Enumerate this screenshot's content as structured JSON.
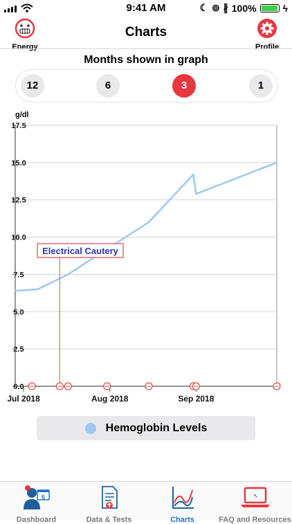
{
  "status_bar": {
    "time": "9:41 AM",
    "battery_text": "100%",
    "battery_level": 1.0
  },
  "nav": {
    "title": "Charts",
    "left_label": "Energy",
    "right_label": "Profile"
  },
  "months": {
    "title": "Months shown in graph",
    "options": [
      "12",
      "6",
      "3",
      "1"
    ],
    "selected": "3"
  },
  "legend": {
    "label": "Hemoglobin Levels",
    "color": "#9ec8f2"
  },
  "tabs": [
    {
      "label": "Dashboard",
      "badge": "6",
      "active": false
    },
    {
      "label": "Data & Tests",
      "active": false
    },
    {
      "label": "Charts",
      "active": true
    },
    {
      "label": "FAQ and Resources",
      "active": false
    }
  ],
  "colors": {
    "accent": "#e8373f",
    "series": "#9ec8f2",
    "active_tab": "#1f73c7",
    "marker": "#d9534f"
  },
  "chart_data": {
    "type": "line",
    "ylabel": "g/dl",
    "ylim": [
      0,
      17.5
    ],
    "yticks": [
      "0.0",
      "2.5",
      "5.0",
      "7.5",
      "10.0",
      "12.5",
      "15.0",
      "17.5"
    ],
    "xlim": [
      "2018-06-28",
      "2018-09-30"
    ],
    "xticks": [
      {
        "label": "Jul 2018",
        "date": "2018-07-01"
      },
      {
        "label": "Aug 2018",
        "date": "2018-08-01"
      },
      {
        "label": "Sep 2018",
        "date": "2018-09-01"
      }
    ],
    "grid": true,
    "series": [
      {
        "name": "Hemoglobin Levels",
        "points": [
          {
            "date": "2018-06-28",
            "value": 6.4
          },
          {
            "date": "2018-07-06",
            "value": 6.5
          },
          {
            "date": "2018-07-17",
            "value": 7.5
          },
          {
            "date": "2018-07-31",
            "value": 9.2
          },
          {
            "date": "2018-08-15",
            "value": 11.0
          },
          {
            "date": "2018-08-31",
            "value": 14.2
          },
          {
            "date": "2018-09-01",
            "value": 12.9
          },
          {
            "date": "2018-09-30",
            "value": 15.0
          }
        ]
      }
    ],
    "event_dates": [
      "2018-07-04",
      "2018-07-14",
      "2018-07-17",
      "2018-07-31",
      "2018-08-15",
      "2018-08-31",
      "2018-09-01",
      "2018-09-30"
    ],
    "annotation": {
      "label": "Electrical Cautery",
      "date": "2018-07-14"
    }
  }
}
